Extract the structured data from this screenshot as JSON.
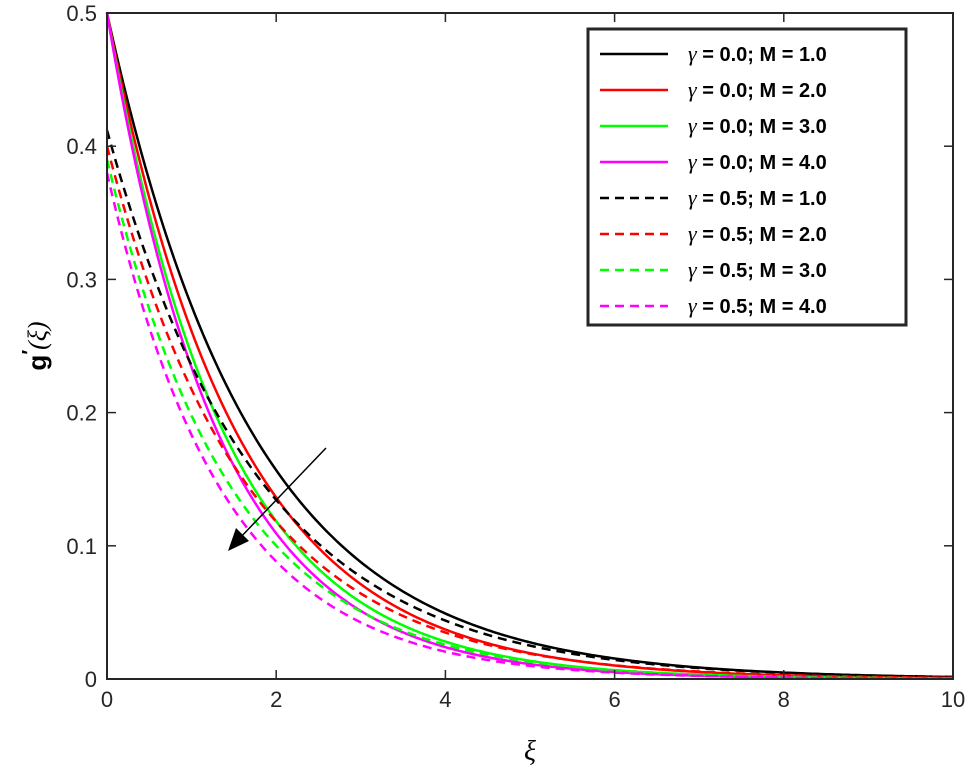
{
  "chart_data": {
    "type": "line",
    "title": "",
    "xlabel": "ξ",
    "ylabel_main": "g",
    "ylabel_prime": "′",
    "ylabel_arg": "(ξ)",
    "xlim": [
      0,
      10
    ],
    "ylim": [
      0,
      0.5
    ],
    "xticks": [
      0,
      2,
      4,
      6,
      8,
      10
    ],
    "yticks": [
      0,
      0.1,
      0.2,
      0.3,
      0.4,
      0.5
    ],
    "xtick_labels": [
      "0",
      "2",
      "4",
      "6",
      "8",
      "10"
    ],
    "ytick_labels": [
      "0",
      "0.1",
      "0.2",
      "0.3",
      "0.4",
      "0.5"
    ],
    "grid": false,
    "legend_position": "top-right",
    "annotation": "arrow pointing down-left indicating increasing M",
    "series": [
      {
        "gamma_label": "γ",
        "rest_label": " = 0.0; M = 1.0",
        "color": "#000000",
        "dashed": false,
        "start": 0.5,
        "decay": 0.58
      },
      {
        "gamma_label": "γ",
        "rest_label": " = 0.0; M = 2.0",
        "color": "#ff0000",
        "dashed": false,
        "start": 0.5,
        "decay": 0.65
      },
      {
        "gamma_label": "γ",
        "rest_label": " = 0.0; M = 3.0",
        "color": "#00ff00",
        "dashed": false,
        "start": 0.5,
        "decay": 0.72
      },
      {
        "gamma_label": "γ",
        "rest_label": " = 0.0; M = 4.0",
        "color": "#ff00ff",
        "dashed": false,
        "start": 0.5,
        "decay": 0.76
      },
      {
        "gamma_label": "γ",
        "rest_label": " = 0.5; M = 1.0",
        "color": "#000000",
        "dashed": true,
        "start": 0.412,
        "decay": 0.56
      },
      {
        "gamma_label": "γ",
        "rest_label": " = 0.5; M = 2.0",
        "color": "#ff0000",
        "dashed": true,
        "start": 0.4,
        "decay": 0.61
      },
      {
        "gamma_label": "γ",
        "rest_label": " = 0.5; M = 3.0",
        "color": "#00ff00",
        "dashed": true,
        "start": 0.39,
        "decay": 0.68
      },
      {
        "gamma_label": "γ",
        "rest_label": " = 0.5; M = 4.0",
        "color": "#ff00ff",
        "dashed": true,
        "start": 0.38,
        "decay": 0.73
      }
    ]
  }
}
